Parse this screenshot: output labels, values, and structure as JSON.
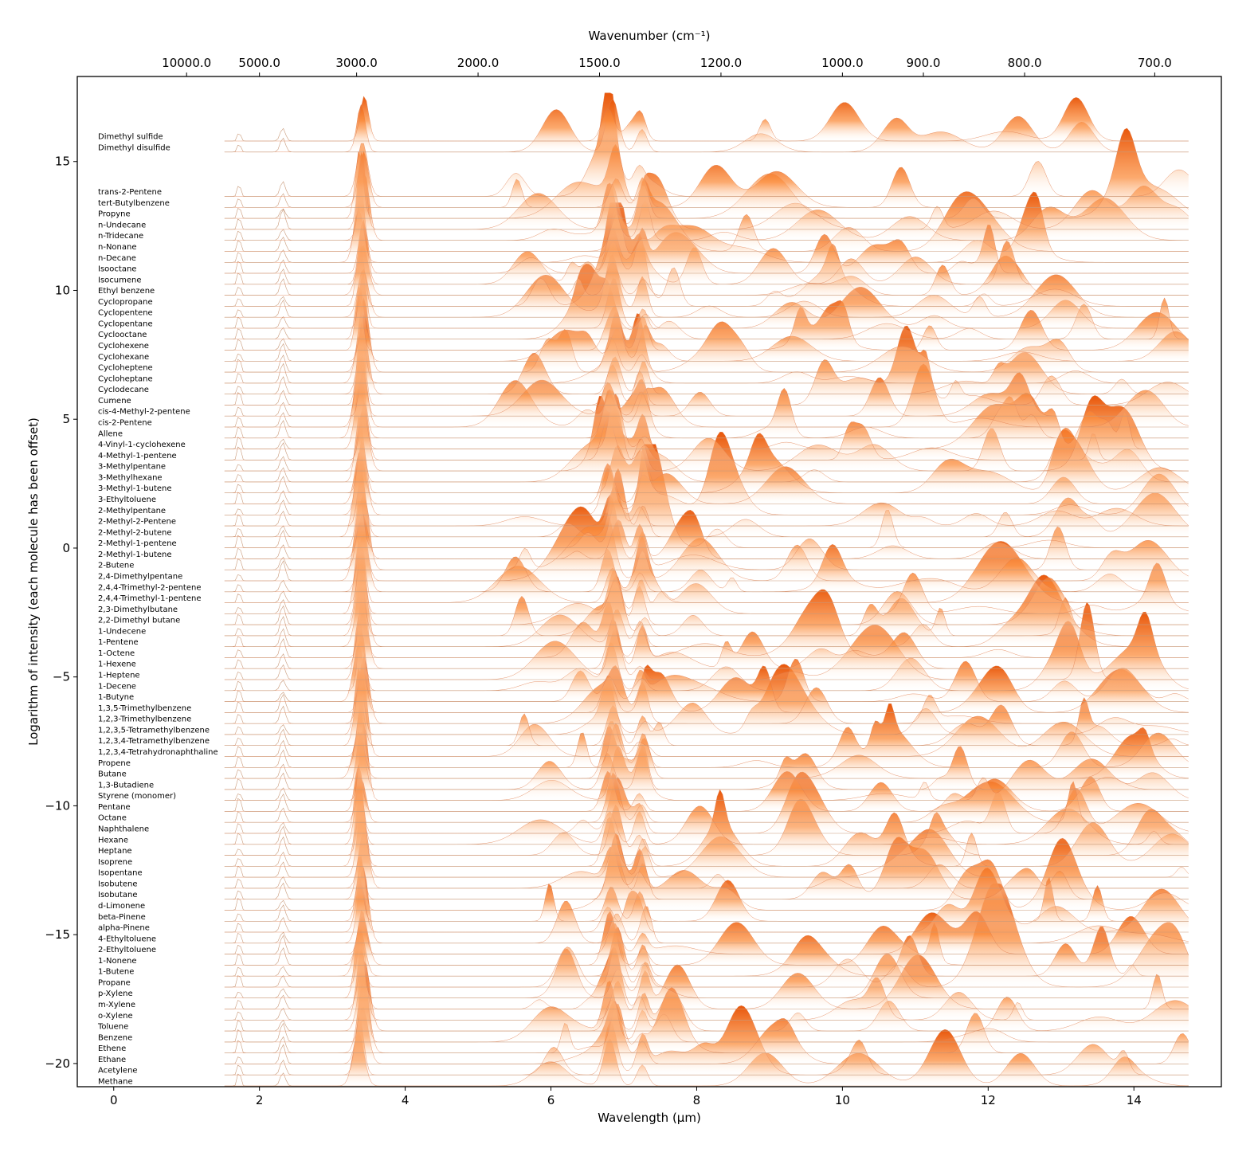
{
  "chart_data": {
    "type": "area",
    "xlabel": "Wavelength (μm)",
    "ylabel": "Logarithm of intensity (each molecule has been offset)",
    "top_xlabel": "Wavenumber (cm⁻¹)",
    "xlim": [
      -0.5,
      15.2
    ],
    "ylim": [
      -20.9,
      18.3
    ],
    "xticks": [
      0,
      2,
      4,
      6,
      8,
      10,
      12,
      14
    ],
    "xtick_labels": [
      "0",
      "2",
      "4",
      "6",
      "8",
      "10",
      "12",
      "14"
    ],
    "yticks": [
      15,
      10,
      5,
      0,
      -5,
      -10,
      -15,
      -20
    ],
    "ytick_labels": [
      "15",
      "10",
      "5",
      "0",
      "−5",
      "−10",
      "−15",
      "−20"
    ],
    "top_ticks": [
      10000,
      5000,
      3000,
      2000,
      1500,
      1200,
      1000,
      900,
      800,
      700
    ],
    "top_tick_labels": [
      "10000.0",
      "5000.0",
      "3000.0",
      "2000.0",
      "1500.0",
      "1200.0",
      "1000.0",
      "900.0",
      "800.0",
      "700.0"
    ],
    "fill_colormap": "Oranges",
    "molecules": [
      "Dimethyl sulfide",
      "Dimethyl disulfide",
      "trans-2-Pentene",
      "tert-Butylbenzene",
      "Propyne",
      "n-Undecane",
      "n-Tridecane",
      "n-Nonane",
      "n-Decane",
      "Isooctane",
      "Isocumene",
      "Ethyl benzene",
      "Cyclopropane",
      "Cyclopentene",
      "Cyclopentane",
      "Cyclooctane",
      "Cyclohexene",
      "Cyclohexane",
      "Cycloheptene",
      "Cycloheptane",
      "Cyclodecane",
      "Cumene",
      "cis-4-Methyl-2-pentene",
      "cis-2-Pentene",
      "Allene",
      "4-Vinyl-1-cyclohexene",
      "4-Methyl-1-pentene",
      "3-Methylpentane",
      "3-Methylhexane",
      "3-Methyl-1-butene",
      "3-Ethyltoluene",
      "2-Methylpentane",
      "2-Methyl-2-Pentene",
      "2-Methyl-2-butene",
      "2-Methyl-1-pentene",
      "2-Methyl-1-butene",
      "2-Butene",
      "2,4-Dimethylpentane",
      "2,4,4-Trimethyl-2-pentene",
      "2,4,4-Trimethyl-1-pentene",
      "2,3-Dimethylbutane",
      "2,2-Dimethyl butane",
      "1-Undecene",
      "1-Pentene",
      "1-Octene",
      "1-Hexene",
      "1-Heptene",
      "1-Decene",
      "1-Butyne",
      "1,3,5-Trimethylbenzene",
      "1,2,3-Trimethylbenzene",
      "1,2,3,5-Tetramethylbenzene",
      "1,2,3,4-Tetramethylbenzene",
      "1,2,3,4-Tetrahydronaphthaline",
      "Propene",
      "Butane",
      "1,3-Butadiene",
      "Styrene (monomer)",
      "Pentane",
      "Octane",
      "Naphthalene",
      "Hexane",
      "Heptane",
      "Isoprene",
      "Isopentane",
      "Isobutene",
      "Isobutane",
      "d-Limonene",
      "beta-Pinene",
      "alpha-Pinene",
      "4-Ethyltoluene",
      "2-Ethyltoluene",
      "1-Nonene",
      "1-Butene",
      "Propane",
      "p-Xylene",
      "m-Xylene",
      "o-Xylene",
      "Toluene",
      "Benzene",
      "Ethene",
      "Ethane",
      "Acetylene",
      "Methane"
    ]
  }
}
